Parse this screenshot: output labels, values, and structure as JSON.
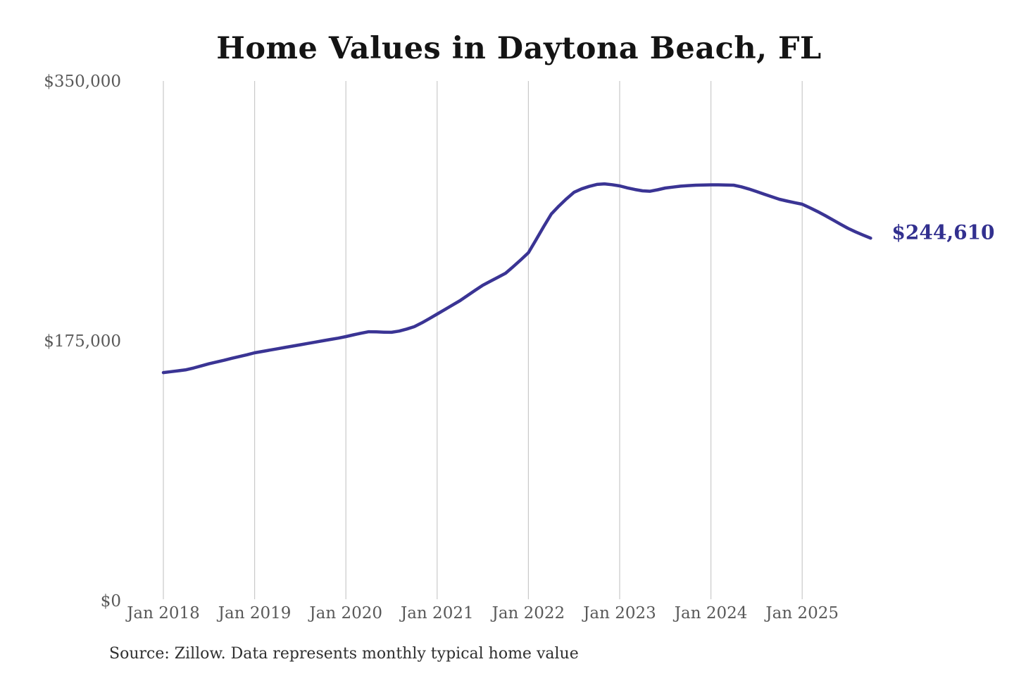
{
  "chart_data": {
    "type": "line",
    "title": "Home Values in Daytona Beach, FL",
    "series_name": "Monthly typical home value",
    "x_start": "Jan 2018",
    "x_end": "Oct 2025",
    "x_frequency": "monthly",
    "x_tick_labels": [
      "Jan 2018",
      "Jan 2019",
      "Jan 2020",
      "Jan 2021",
      "Jan 2022",
      "Jan 2023",
      "Jan 2024",
      "Jan 2025"
    ],
    "y_ticks": [
      {
        "value": 0,
        "label": "$0"
      },
      {
        "value": 175000,
        "label": "$175,000"
      },
      {
        "value": 350000,
        "label": "$350,000"
      }
    ],
    "ylim": [
      0,
      350000
    ],
    "grid": "vertical-only",
    "legend": "none",
    "line_color": "#3a3494",
    "gridline_color": "#c9c9c9",
    "end_label": "$244,610",
    "last_value": 244610,
    "values": [
      154100,
      154700,
      155300,
      156000,
      157200,
      158600,
      160000,
      161200,
      162400,
      163700,
      164900,
      166100,
      167400,
      168300,
      169200,
      170100,
      171000,
      171900,
      172800,
      173700,
      174600,
      175500,
      176400,
      177300,
      178300,
      179500,
      180600,
      181600,
      181500,
      181300,
      181200,
      182000,
      183400,
      185000,
      187600,
      190500,
      193500,
      196500,
      199500,
      202500,
      206000,
      209500,
      212900,
      215600,
      218300,
      221000,
      225400,
      230000,
      234800,
      243500,
      252300,
      260800,
      266200,
      271100,
      275500,
      277800,
      279500,
      280800,
      281200,
      280600,
      279800,
      278500,
      277400,
      276500,
      276200,
      277200,
      278400,
      279000,
      279600,
      280000,
      280300,
      280400,
      280500,
      280500,
      280400,
      280300,
      279200,
      277700,
      276000,
      274200,
      272500,
      270800,
      269600,
      268500,
      267500,
      265100,
      262600,
      259900,
      257000,
      254100,
      251300,
      248900,
      246700,
      244610
    ],
    "source_note": "Source: Zillow. Data represents monthly typical home value"
  }
}
